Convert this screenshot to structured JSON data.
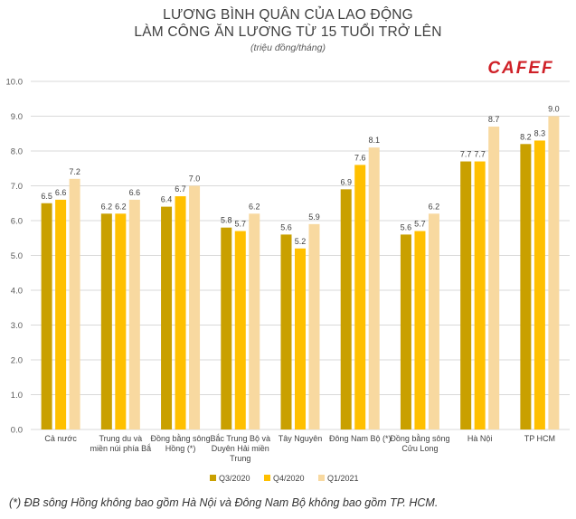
{
  "header": {
    "title_line1": "LƯƠNG BÌNH QUÂN CỦA LAO ĐỘNG",
    "title_line2": "LÀM CÔNG ĂN LƯƠNG TỪ 15 TUỔI TRỞ LÊN",
    "subtitle": "(triệu đồng/tháng)",
    "logo_text": "CAFEF"
  },
  "footnote": "(*) ĐB sông Hồng không bao gồm Hà Nội và Đông Nam Bộ không bao gồm TP. HCM.",
  "colors": {
    "q3": "#C9A000",
    "q4": "#FFC000",
    "q1": "#F8D9A0",
    "logo": "#CF2027",
    "grid": "#D9D9D9"
  },
  "chart_data": {
    "type": "bar",
    "title": "LƯƠNG BÌNH QUÂN CỦA LAO ĐỘNG LÀM CÔNG ĂN LƯƠNG TỪ 15 TUỔI TRỞ LÊN",
    "ylabel": "triệu đồng/tháng",
    "ylim": [
      0,
      10
    ],
    "yticks": [
      "0.0",
      "1.0",
      "2.0",
      "3.0",
      "4.0",
      "5.0",
      "6.0",
      "7.0",
      "8.0",
      "9.0",
      "10.0"
    ],
    "categories": [
      [
        "Cả nước"
      ],
      [
        "Trung du và",
        "miền núi phía Bắ"
      ],
      [
        "Đồng bằng sông",
        "Hồng (*)"
      ],
      [
        "Bắc Trung Bộ và",
        "Duyên Hải miền",
        "Trung"
      ],
      [
        "Tây Nguyên"
      ],
      [
        "Đông Nam Bộ (*)"
      ],
      [
        "Đồng bằng sông",
        "Cửu Long"
      ],
      [
        "Hà Nội"
      ],
      [
        "TP HCM"
      ]
    ],
    "series": [
      {
        "name": "Q3/2020",
        "values": [
          6.5,
          6.2,
          6.4,
          5.8,
          5.6,
          6.9,
          5.6,
          7.7,
          8.2
        ],
        "labels": [
          "6.5",
          "6.2",
          "6.4",
          "5.8",
          "5.6",
          "6.9",
          "5.6",
          "7.7",
          "8.2"
        ]
      },
      {
        "name": "Q4/2020",
        "values": [
          6.6,
          6.2,
          6.7,
          5.7,
          5.2,
          7.6,
          5.7,
          7.7,
          8.3
        ],
        "labels": [
          "6.6",
          "6.2",
          "6.7",
          "5.7",
          "5.2",
          "7.6",
          "5.7",
          "7.7",
          "8.3"
        ]
      },
      {
        "name": "Q1/2021",
        "values": [
          7.2,
          6.6,
          7.0,
          6.2,
          5.9,
          8.1,
          6.2,
          8.7,
          9.0
        ],
        "labels": [
          "7.2",
          "6.6",
          "7.0",
          "6.2",
          "5.9",
          "8.1",
          "6.2",
          "8.7",
          "9.0"
        ]
      }
    ],
    "legend": "bottom-center"
  }
}
